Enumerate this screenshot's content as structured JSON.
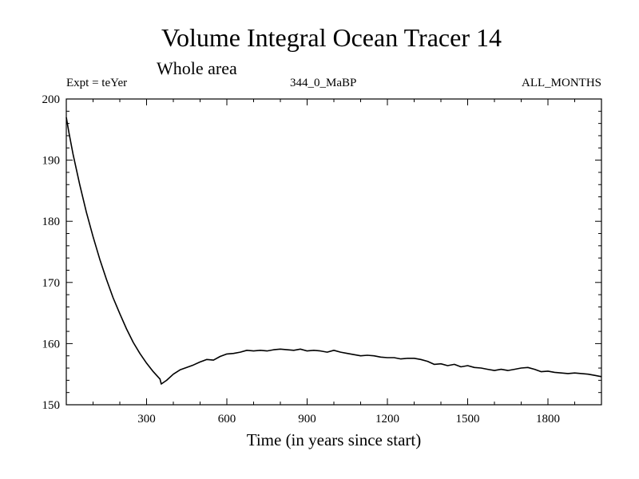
{
  "chart_data": {
    "type": "line",
    "title": "Volume Integral Ocean Tracer 14",
    "subtitle": "Whole area",
    "experiment_label": "Expt = teYer",
    "period_label": "344_0_MaBP",
    "months_label": "ALL_MONTHS",
    "xlabel": "Time (in years since start)",
    "ylabel": "",
    "xlim": [
      0,
      2000
    ],
    "ylim": [
      150,
      200
    ],
    "x_ticks": [
      300,
      600,
      900,
      1200,
      1500,
      1800
    ],
    "y_ticks": [
      150,
      160,
      170,
      180,
      190,
      200
    ],
    "x_minor_step": 100,
    "y_minor_step": 2,
    "line_color": "#000000",
    "series": [
      {
        "name": "Tracer 14",
        "x": [
          0,
          10,
          25,
          50,
          75,
          100,
          125,
          150,
          175,
          200,
          225,
          250,
          275,
          300,
          325,
          350,
          355,
          375,
          400,
          425,
          450,
          475,
          500,
          525,
          550,
          575,
          600,
          625,
          650,
          675,
          700,
          725,
          750,
          775,
          800,
          825,
          850,
          875,
          900,
          925,
          950,
          975,
          1000,
          1025,
          1050,
          1075,
          1100,
          1125,
          1150,
          1175,
          1200,
          1225,
          1250,
          1275,
          1300,
          1325,
          1350,
          1375,
          1400,
          1425,
          1450,
          1475,
          1500,
          1525,
          1550,
          1575,
          1600,
          1625,
          1650,
          1675,
          1700,
          1725,
          1750,
          1775,
          1800,
          1825,
          1850,
          1875,
          1900,
          1925,
          1950,
          1975,
          2000
        ],
        "values": [
          197.0,
          194.5,
          191.0,
          186.0,
          181.5,
          177.5,
          173.8,
          170.5,
          167.5,
          164.9,
          162.4,
          160.2,
          158.4,
          156.8,
          155.4,
          154.2,
          153.4,
          154.0,
          155.0,
          155.7,
          156.1,
          156.5,
          157.0,
          157.4,
          157.3,
          157.9,
          158.3,
          158.4,
          158.6,
          158.9,
          158.8,
          158.9,
          158.8,
          159.0,
          159.1,
          159.0,
          158.9,
          159.1,
          158.8,
          158.9,
          158.8,
          158.6,
          158.9,
          158.6,
          158.4,
          158.2,
          158.0,
          158.1,
          158.0,
          157.8,
          157.7,
          157.7,
          157.5,
          157.6,
          157.6,
          157.4,
          157.1,
          156.6,
          156.7,
          156.4,
          156.6,
          156.2,
          156.4,
          156.1,
          156.0,
          155.8,
          155.6,
          155.8,
          155.6,
          155.8,
          156.0,
          156.1,
          155.8,
          155.4,
          155.5,
          155.3,
          155.2,
          155.1,
          155.2,
          155.1,
          155.0,
          154.8,
          154.6
        ]
      }
    ]
  }
}
